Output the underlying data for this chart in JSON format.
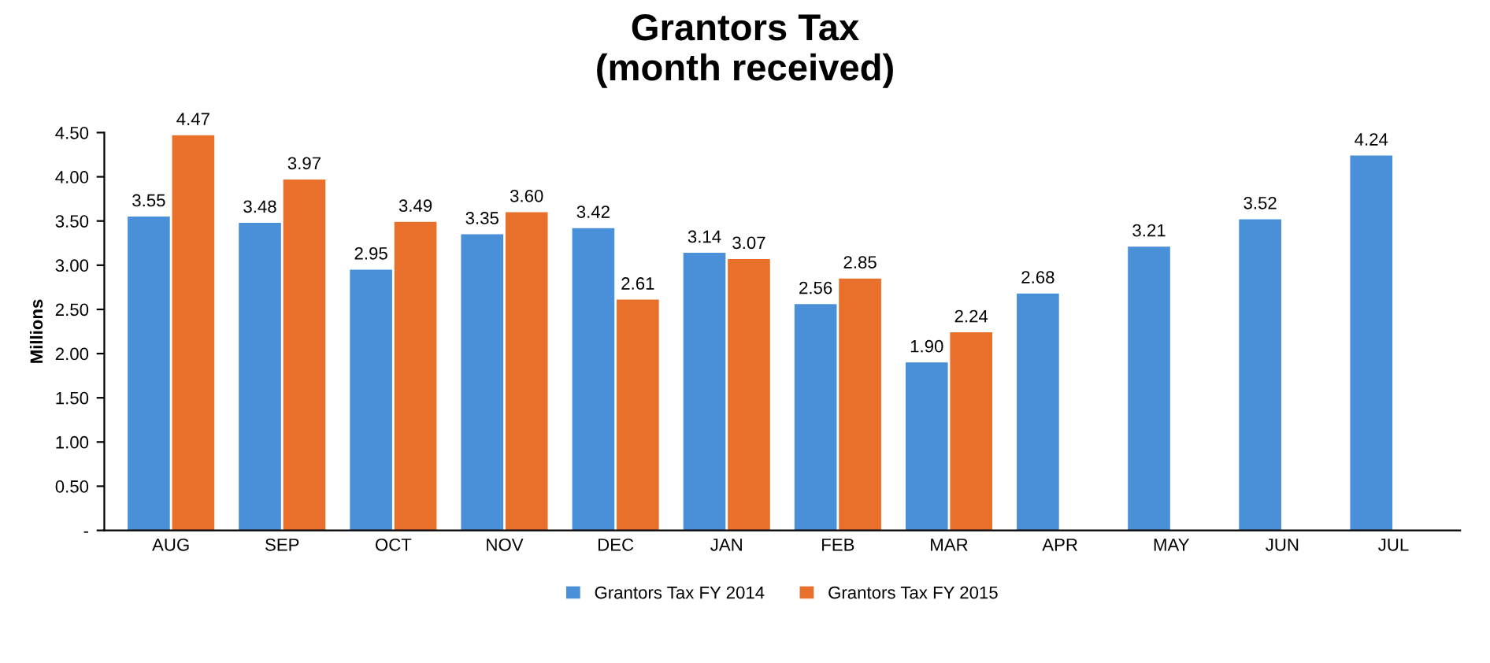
{
  "chart_data": {
    "type": "bar",
    "title": "Grantors Tax\n(month received)",
    "ylabel": "Millions",
    "categories": [
      "AUG",
      "SEP",
      "OCT",
      "NOV",
      "DEC",
      "JAN",
      "FEB",
      "MAR",
      "APR",
      "MAY",
      "JUN",
      "JUL"
    ],
    "series": [
      {
        "name": "Grantors Tax FY 2014",
        "color": "#4a90d9",
        "values": [
          3.55,
          3.48,
          2.95,
          3.35,
          3.42,
          3.14,
          2.56,
          1.9,
          2.68,
          3.21,
          3.52,
          4.24
        ],
        "value_labels": [
          "3.55",
          "3.48",
          "2.95",
          "3.35",
          "3.42",
          "3.14",
          "2.56",
          "1.90",
          "2.68",
          "3.21",
          "3.52",
          "4.24"
        ]
      },
      {
        "name": "Grantors Tax FY 2015",
        "color": "#e8702a",
        "values": [
          4.47,
          3.97,
          3.49,
          3.6,
          2.61,
          3.07,
          2.85,
          2.24,
          null,
          null,
          null,
          null
        ],
        "value_labels": [
          "4.47",
          "3.97",
          "3.49",
          "3.60",
          "2.61",
          "3.07",
          "2.85",
          "2.24",
          null,
          null,
          null,
          null
        ]
      }
    ],
    "ylim": [
      0,
      4.5
    ],
    "yticks": [
      {
        "value": 0,
        "label": "-"
      },
      {
        "value": 0.5,
        "label": "0.50"
      },
      {
        "value": 1,
        "label": "1.00"
      },
      {
        "value": 1.5,
        "label": "1.50"
      },
      {
        "value": 2,
        "label": "2.00"
      },
      {
        "value": 2.5,
        "label": "2.50"
      },
      {
        "value": 3,
        "label": "3.00"
      },
      {
        "value": 3.5,
        "label": "3.50"
      },
      {
        "value": 4,
        "label": "4.00"
      },
      {
        "value": 4.5,
        "label": "4.50"
      }
    ],
    "grid": false,
    "legend": "bottom"
  }
}
